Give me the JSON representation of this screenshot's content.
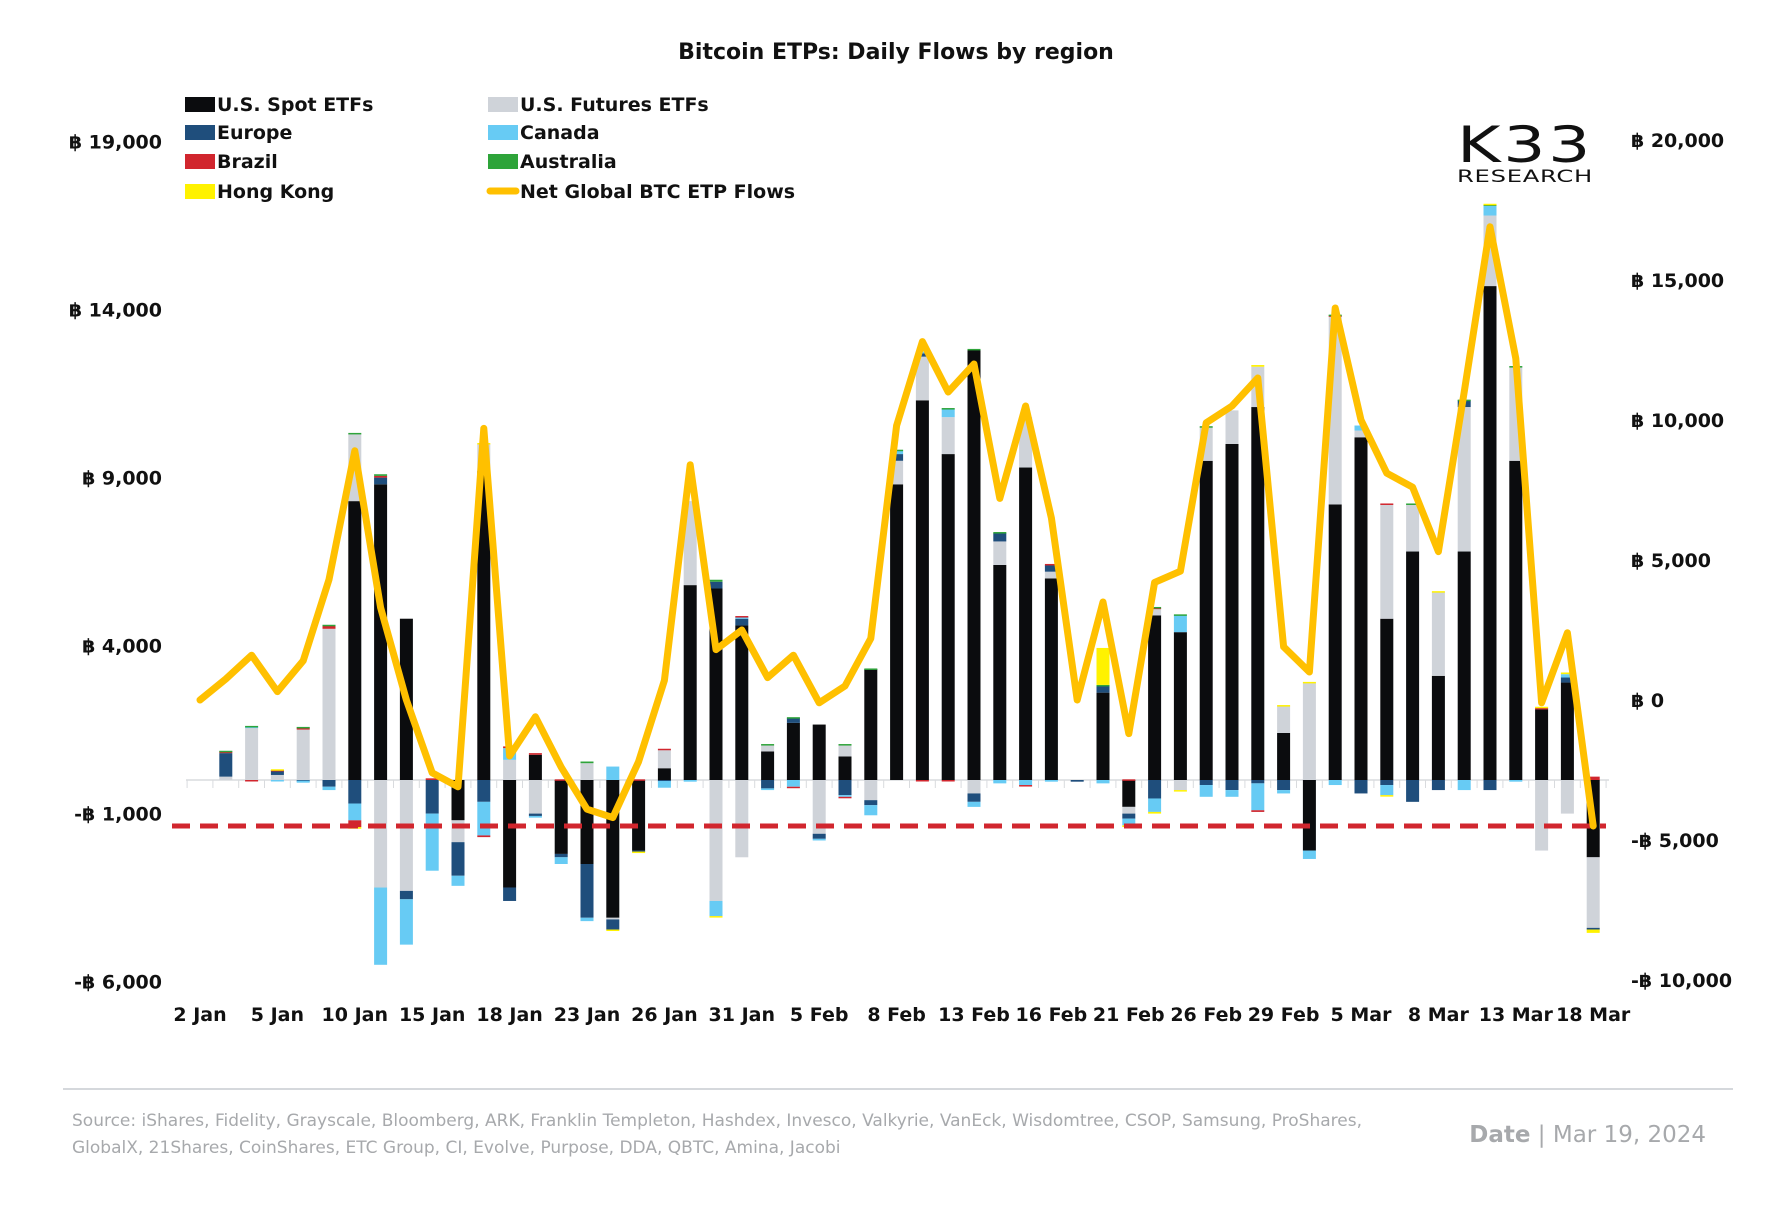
{
  "chart_data": {
    "type": "bar",
    "stacked": true,
    "title": "Bitcoin ETPs: Daily Flows by region",
    "xlabel": "",
    "ylabel": "",
    "currency_symbol": "฿",
    "left_axis": {
      "range": [
        -6000,
        19000
      ],
      "ticks": [
        19000,
        14000,
        9000,
        4000,
        -1000,
        -6000
      ],
      "tick_labels": [
        "฿ 19,000",
        "฿ 14,000",
        "฿ 9,000",
        "฿ 4,000",
        "-฿ 1,000",
        "-฿ 6,000"
      ]
    },
    "right_axis": {
      "range": [
        -10000,
        20000
      ],
      "ticks": [
        20000,
        15000,
        10000,
        5000,
        0,
        -5000,
        -10000
      ],
      "tick_labels": [
        "฿ 20,000",
        "฿ 15,000",
        "฿ 10,000",
        "฿ 5,000",
        "฿ 0",
        "-฿ 5,000",
        "-฿ 10,000"
      ]
    },
    "grid": false,
    "legend_position": "top-left",
    "categories": [
      "2 Jan",
      "3 Jan",
      "4 Jan",
      "5 Jan",
      "8 Jan",
      "9 Jan",
      "10 Jan",
      "11 Jan",
      "12 Jan",
      "15 Jan",
      "16 Jan",
      "17 Jan",
      "18 Jan",
      "19 Jan",
      "22 Jan",
      "23 Jan",
      "24 Jan",
      "25 Jan",
      "26 Jan",
      "29 Jan",
      "30 Jan",
      "31 Jan",
      "1 Feb",
      "2 Feb",
      "5 Feb",
      "6 Feb",
      "7 Feb",
      "8 Feb",
      "9 Feb",
      "12 Feb",
      "13 Feb",
      "14 Feb",
      "15 Feb",
      "16 Feb",
      "19 Feb",
      "20 Feb",
      "21 Feb",
      "22 Feb",
      "23 Feb",
      "26 Feb",
      "27 Feb",
      "28 Feb",
      "29 Feb",
      "1 Mar",
      "4 Mar",
      "5 Mar",
      "6 Mar",
      "7 Mar",
      "8 Mar",
      "11 Mar",
      "12 Mar",
      "13 Mar",
      "14 Mar",
      "15 Mar",
      "18 Mar"
    ],
    "x_tick_labels": [
      "2 Jan",
      "5 Jan",
      "10 Jan",
      "15 Jan",
      "18 Jan",
      "23 Jan",
      "26 Jan",
      "31 Jan",
      "5 Feb",
      "8 Feb",
      "13 Feb",
      "16 Feb",
      "21 Feb",
      "26 Feb",
      "29 Feb",
      "5 Mar",
      "8 Mar",
      "13 Mar",
      "18 Mar"
    ],
    "x_tick_every": 3,
    "series": [
      {
        "name": "U.S. Spot ETFs",
        "color": "#0b0c0e",
        "axis": "left",
        "values": [
          0,
          0,
          0,
          0,
          0,
          0,
          8300,
          8800,
          4800,
          0,
          -1200,
          9200,
          -3200,
          750,
          -2200,
          -2500,
          -4100,
          -2100,
          350,
          5800,
          5700,
          4600,
          850,
          1700,
          1650,
          700,
          3300,
          8800,
          11300,
          9700,
          12800,
          6400,
          9300,
          6000,
          0,
          2600,
          -800,
          4900,
          4400,
          9500,
          10000,
          11100,
          1400,
          -2100,
          8200,
          10200,
          4800,
          6800,
          3100,
          6800,
          14700,
          9500,
          2100,
          2900,
          -2300
        ]
      },
      {
        "name": "U.S. Futures ETFs",
        "color": "#cfd3d9",
        "axis": "left",
        "values": [
          0,
          100,
          1550,
          150,
          1500,
          4500,
          2000,
          -3200,
          -3300,
          0,
          -650,
          800,
          600,
          -1000,
          0,
          500,
          -50,
          0,
          550,
          2500,
          -3600,
          -2300,
          200,
          0,
          -1600,
          350,
          -600,
          700,
          1300,
          1100,
          -400,
          700,
          1500,
          200,
          0,
          0,
          -200,
          200,
          -300,
          1000,
          1000,
          1200,
          800,
          2900,
          5600,
          200,
          3400,
          1400,
          2500,
          4300,
          2100,
          2800,
          -2100,
          -1000,
          -2100
        ]
      },
      {
        "name": "Europe",
        "color": "#1f4e7c",
        "axis": "left",
        "values": [
          0,
          700,
          0,
          130,
          -20,
          -200,
          -700,
          200,
          -250,
          -1000,
          -1000,
          -650,
          -400,
          -70,
          -100,
          -1600,
          -300,
          -30,
          -30,
          0,
          200,
          200,
          -250,
          150,
          -150,
          -450,
          -150,
          200,
          100,
          0,
          -250,
          250,
          0,
          200,
          -50,
          200,
          -150,
          -550,
          0,
          -150,
          -300,
          -100,
          -300,
          0,
          0,
          -400,
          -150,
          -650,
          -300,
          200,
          -300,
          0,
          0,
          150,
          -50
        ]
      },
      {
        "name": "Canada",
        "color": "#67cbf4",
        "axis": "left",
        "values": [
          0,
          0,
          40,
          -20,
          -60,
          -100,
          -500,
          -2300,
          -1350,
          -1700,
          -300,
          -1000,
          350,
          -50,
          -200,
          -100,
          400,
          0,
          -200,
          -50,
          -450,
          50,
          -50,
          -200,
          -50,
          -50,
          -300,
          100,
          50,
          250,
          -150,
          -100,
          -150,
          -50,
          0,
          -100,
          -200,
          -400,
          500,
          -350,
          -200,
          -800,
          -100,
          -250,
          -150,
          150,
          -300,
          0,
          0,
          -300,
          300,
          -50,
          0,
          100,
          0
        ]
      },
      {
        "name": "Brazil",
        "color": "#d1262e",
        "axis": "left",
        "values": [
          0,
          50,
          -20,
          20,
          60,
          100,
          -200,
          50,
          0,
          50,
          0,
          -50,
          50,
          50,
          20,
          0,
          0,
          20,
          30,
          0,
          0,
          30,
          0,
          -30,
          0,
          -20,
          0,
          0,
          -20,
          -30,
          0,
          0,
          -30,
          30,
          0,
          0,
          20,
          30,
          0,
          0,
          0,
          -50,
          0,
          0,
          30,
          0,
          30,
          0,
          0,
          0,
          0,
          0,
          50,
          0,
          100
        ]
      },
      {
        "name": "Australia",
        "color": "#2ea43a",
        "axis": "left",
        "values": [
          0,
          20,
          20,
          0,
          20,
          20,
          30,
          50,
          0,
          0,
          0,
          0,
          0,
          0,
          0,
          50,
          0,
          0,
          0,
          0,
          60,
          0,
          20,
          20,
          0,
          20,
          20,
          30,
          0,
          20,
          30,
          30,
          0,
          0,
          0,
          30,
          0,
          20,
          30,
          30,
          0,
          0,
          0,
          0,
          20,
          0,
          0,
          30,
          0,
          20,
          30,
          20,
          0,
          0,
          0
        ]
      },
      {
        "name": "Hong Kong",
        "color": "#fff200",
        "axis": "left",
        "values": [
          0,
          0,
          0,
          20,
          0,
          0,
          -50,
          0,
          0,
          0,
          0,
          30,
          0,
          0,
          0,
          0,
          -30,
          -20,
          0,
          0,
          -20,
          0,
          0,
          0,
          0,
          0,
          0,
          0,
          0,
          0,
          0,
          0,
          0,
          0,
          0,
          1100,
          -50,
          -50,
          -30,
          0,
          0,
          50,
          30,
          20,
          0,
          0,
          -30,
          0,
          20,
          0,
          20,
          0,
          30,
          50,
          -100
        ]
      }
    ],
    "line": {
      "name": "Net Global BTC ETP Flows",
      "color": "#ffc000",
      "axis": "right",
      "values": [
        0,
        750,
        1600,
        300,
        1400,
        4300,
        8900,
        3300,
        0,
        -2600,
        -3100,
        9700,
        -2000,
        -600,
        -2400,
        -3900,
        -4200,
        -2200,
        700,
        8400,
        1800,
        2500,
        800,
        1600,
        -100,
        500,
        2200,
        9800,
        12800,
        11000,
        12000,
        7200,
        10500,
        6500,
        0,
        3500,
        -1200,
        4200,
        4600,
        9900,
        10500,
        11500,
        1900,
        1000,
        14000,
        10000,
        8100,
        7600,
        5300,
        11000,
        16900,
        12200,
        -100,
        2400,
        -4500
      ]
    },
    "reference_line": {
      "value": -4500,
      "axis": "right",
      "color": "#d1262e",
      "style": "dashed"
    },
    "annotations": []
  },
  "legend": [
    {
      "label": "U.S. Spot ETFs",
      "color": "#0b0c0e",
      "kind": "box"
    },
    {
      "label": "U.S. Futures ETFs",
      "color": "#cfd3d9",
      "kind": "box"
    },
    {
      "label": "Europe",
      "color": "#1f4e7c",
      "kind": "box"
    },
    {
      "label": "Canada",
      "color": "#67cbf4",
      "kind": "box"
    },
    {
      "label": "Brazil",
      "color": "#d1262e",
      "kind": "box"
    },
    {
      "label": "Australia",
      "color": "#2ea43a",
      "kind": "box"
    },
    {
      "label": "Hong Kong",
      "color": "#fff200",
      "kind": "box"
    },
    {
      "label": "Net Global BTC ETP Flows",
      "color": "#ffc000",
      "kind": "line"
    }
  ],
  "logo": {
    "main": "K33",
    "sub": "RESEARCH"
  },
  "footer": {
    "source": "Source:  iShares, Fidelity, Grayscale, Bloomberg, ARK, Franklin Templeton, Hashdex, Invesco, Valkyrie, VanEck, Wisdomtree, CSOP, Samsung, ProShares, GlobalX, 21Shares, CoinShares, ETC Group, CI, Evolve, Purpose, DDA, QBTC, Amina, Jacobi",
    "date_label": "Date",
    "date_separator": "|",
    "date_value": "Mar 19, 2024"
  }
}
